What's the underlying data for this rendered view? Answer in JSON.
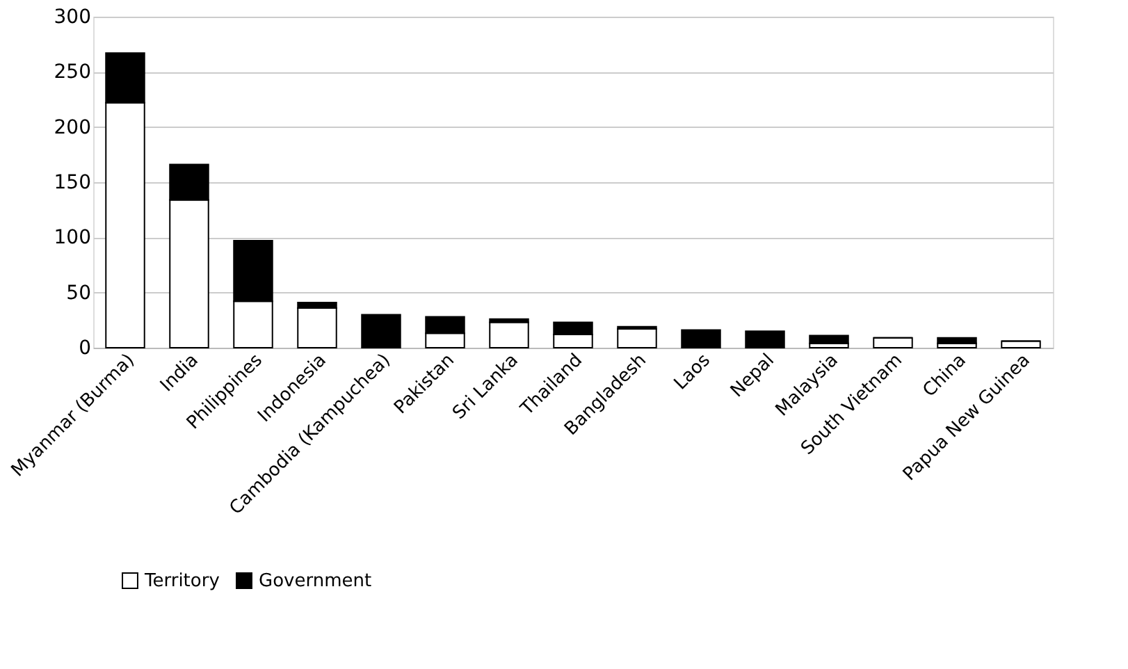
{
  "chart_data": {
    "type": "bar",
    "stacked": true,
    "categories": [
      "Myanmar (Burma)",
      "India",
      "Philippines",
      "Indonesia",
      "Cambodia (Kampuchea)",
      "Pakistan",
      "Sri Lanka",
      "Thailand",
      "Bangladesh",
      "Laos",
      "Nepal",
      "Malaysia",
      "South Vietnam",
      "China",
      "Papua New Guinea"
    ],
    "series": [
      {
        "name": "Territory",
        "color": "#ffffff",
        "values": [
          222,
          134,
          42,
          36,
          0,
          13,
          23,
          12,
          17,
          0,
          0,
          4,
          9,
          4,
          6
        ]
      },
      {
        "name": "Government",
        "color": "#000000",
        "values": [
          45,
          32,
          55,
          5,
          30,
          15,
          3,
          11,
          2,
          16,
          15,
          7,
          0,
          5,
          0
        ]
      }
    ],
    "ylim": [
      0,
      300
    ],
    "yticks": [
      0,
      50,
      100,
      150,
      200,
      250,
      300
    ],
    "grid": "y",
    "legend": "bottom"
  }
}
